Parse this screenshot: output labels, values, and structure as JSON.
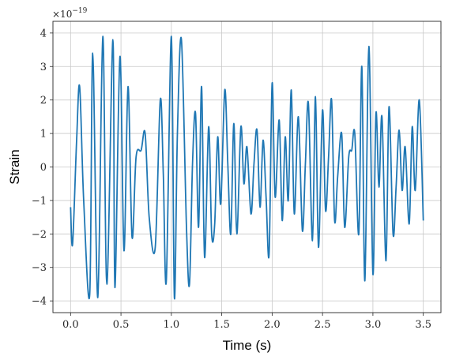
{
  "chart_data": {
    "type": "line",
    "xlabel": "Time (s)",
    "ylabel": "Strain",
    "y_offset_text": "×10",
    "y_offset_exponent": "−19",
    "xlim": [
      -0.175,
      3.675
    ],
    "ylim": [
      -4.35,
      4.35
    ],
    "grid": true,
    "x_ticks": [
      0.0,
      0.5,
      1.0,
      1.5,
      2.0,
      2.5,
      3.0,
      3.5
    ],
    "x_tick_labels": [
      "0.0",
      "0.5",
      "1.0",
      "1.5",
      "2.0",
      "2.5",
      "3.0",
      "3.5"
    ],
    "y_ticks": [
      -4,
      -3,
      -2,
      -1,
      0,
      1,
      2,
      3,
      4
    ],
    "y_tick_labels": [
      "−4",
      "−3",
      "−2",
      "−1",
      "0",
      "1",
      "2",
      "3",
      "4"
    ],
    "line_color": "#1f77b4",
    "series": [
      {
        "x": [
          0.0,
          0.02,
          0.06,
          0.09,
          0.13,
          0.19,
          0.22,
          0.27,
          0.32,
          0.36,
          0.42,
          0.44,
          0.49,
          0.53,
          0.57,
          0.61,
          0.65,
          0.7,
          0.74,
          0.78,
          0.84,
          0.89,
          0.92,
          0.95,
          1.0,
          1.03,
          1.06,
          1.1,
          1.15,
          1.18,
          1.21,
          1.24,
          1.27,
          1.3,
          1.33,
          1.37,
          1.4,
          1.43,
          1.46,
          1.49,
          1.53,
          1.56,
          1.59,
          1.62,
          1.65,
          1.69,
          1.72,
          1.75,
          1.79,
          1.82,
          1.85,
          1.88,
          1.91,
          1.94,
          1.97,
          2.0,
          2.03,
          2.07,
          2.1,
          2.13,
          2.16,
          2.19,
          2.22,
          2.26,
          2.3,
          2.33,
          2.36,
          2.4,
          2.43,
          2.46,
          2.5,
          2.53,
          2.56,
          2.59,
          2.62,
          2.65,
          2.69,
          2.72,
          2.76,
          2.79,
          2.82,
          2.86,
          2.89,
          2.92,
          2.96,
          3.0,
          3.03,
          3.06,
          3.09,
          3.13,
          3.16,
          3.2,
          3.23,
          3.26,
          3.29,
          3.32,
          3.36,
          3.39,
          3.42,
          3.46,
          3.5
        ],
        "y": [
          -1.2,
          -2.3,
          0.8,
          2.4,
          -1.0,
          -3.8,
          3.4,
          -3.9,
          3.9,
          -3.5,
          3.8,
          -3.6,
          3.3,
          -2.5,
          2.4,
          -2.1,
          0.3,
          0.5,
          1.0,
          -1.5,
          -2.4,
          2.0,
          -0.2,
          -3.4,
          3.9,
          -3.9,
          1.0,
          3.8,
          -1.8,
          -3.5,
          0.1,
          1.6,
          -1.8,
          2.4,
          -2.7,
          1.2,
          -2.0,
          -1.7,
          0.9,
          -1.1,
          2.3,
          0.1,
          -2.0,
          1.3,
          -2.0,
          1.2,
          -0.5,
          0.6,
          -1.4,
          0.1,
          1.1,
          -1.2,
          0.8,
          -0.9,
          -2.6,
          2.5,
          -0.9,
          1.4,
          -1.6,
          0.9,
          -1.0,
          2.3,
          -1.4,
          1.5,
          -1.9,
          0.1,
          1.9,
          -2.2,
          2.1,
          -2.4,
          1.7,
          -1.3,
          0.3,
          2.0,
          -1.6,
          -0.3,
          1.0,
          -1.8,
          0.3,
          0.5,
          1.0,
          -2.0,
          3.0,
          -3.4,
          3.6,
          -3.2,
          1.6,
          -0.6,
          1.5,
          -2.8,
          1.8,
          -2.0,
          -0.6,
          1.1,
          -0.7,
          0.6,
          -1.7,
          1.2,
          -0.7,
          2.0,
          -1.6
        ]
      }
    ]
  }
}
